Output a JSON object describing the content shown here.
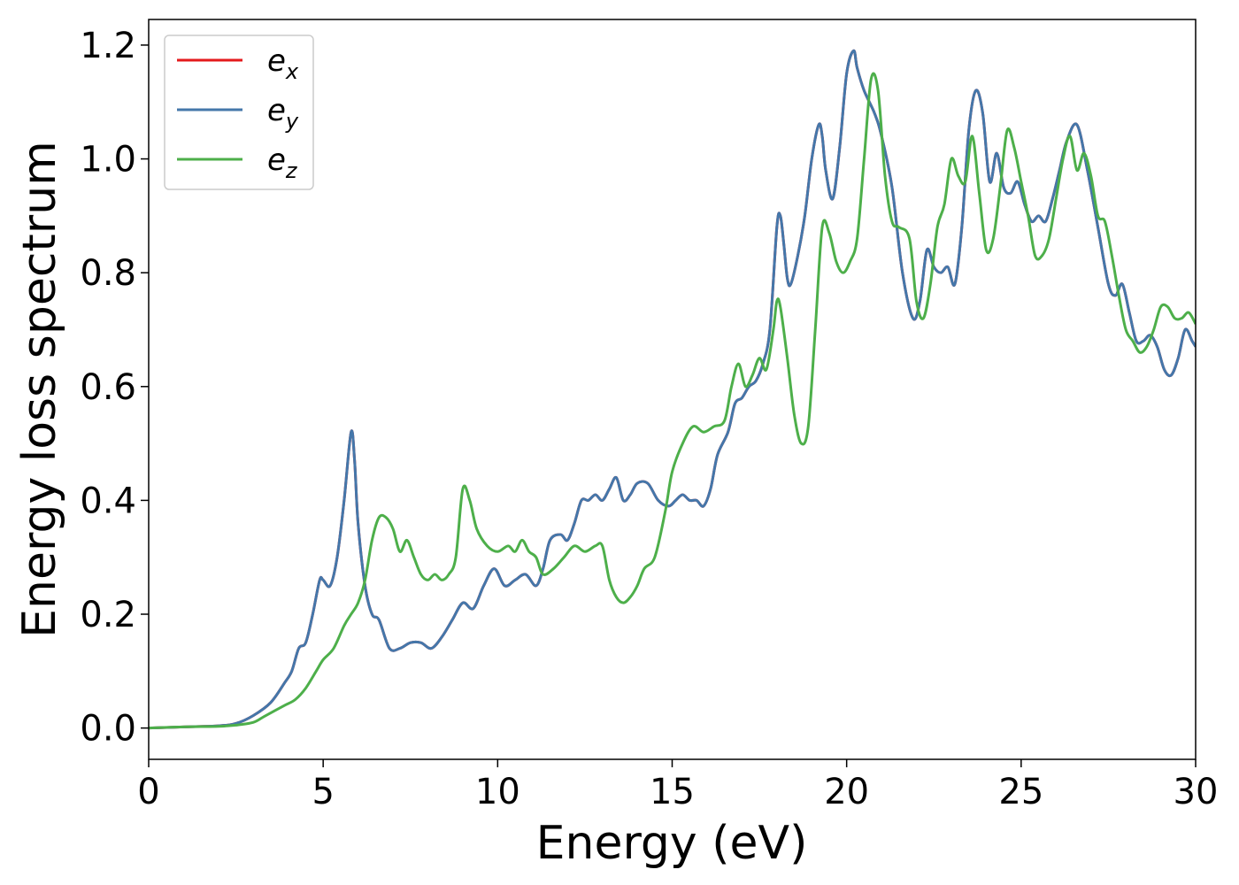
{
  "chart_data": {
    "type": "line",
    "title": "",
    "xlabel": "Energy (eV)",
    "ylabel": "Energy loss spectrum",
    "xlim": [
      0,
      30
    ],
    "ylim": [
      -0.055,
      1.245
    ],
    "xticks": [
      0,
      5,
      10,
      15,
      20,
      25,
      30
    ],
    "yticks": [
      0.0,
      0.2,
      0.4,
      0.6,
      0.8,
      1.0,
      1.2
    ],
    "xtick_labels": [
      "0",
      "5",
      "10",
      "15",
      "20",
      "25",
      "30"
    ],
    "ytick_labels": [
      "0.0",
      "0.2",
      "0.4",
      "0.6",
      "0.8",
      "1.0",
      "1.2"
    ],
    "grid": false,
    "legend": "upper-left",
    "series": [
      {
        "name": "e_x",
        "legend_base": "e",
        "legend_sub": "x",
        "color": "#e41a1c",
        "x": [
          0,
          1,
          2,
          2.5,
          3,
          3.5,
          3.9,
          4.1,
          4.3,
          4.5,
          4.7,
          4.9,
          5.0,
          5.2,
          5.4,
          5.6,
          5.8,
          5.9,
          6.0,
          6.2,
          6.4,
          6.6,
          6.9,
          7.2,
          7.5,
          7.8,
          8.1,
          8.4,
          8.7,
          9.0,
          9.3,
          9.6,
          9.9,
          10.2,
          10.5,
          10.8,
          11.1,
          11.3,
          11.5,
          11.8,
          12.0,
          12.2,
          12.4,
          12.6,
          12.8,
          13.0,
          13.2,
          13.4,
          13.6,
          13.8,
          14.0,
          14.3,
          14.6,
          14.9,
          15.1,
          15.3,
          15.5,
          15.7,
          15.9,
          16.1,
          16.3,
          16.6,
          16.8,
          17.0,
          17.2,
          17.4,
          17.6,
          17.8,
          18.0,
          18.1,
          18.2,
          18.3,
          18.4,
          18.6,
          18.8,
          19.0,
          19.2,
          19.3,
          19.4,
          19.6,
          19.8,
          20.0,
          20.2,
          20.3,
          20.5,
          20.8,
          21.0,
          21.3,
          21.6,
          21.9,
          22.1,
          22.3,
          22.5,
          22.7,
          22.9,
          23.1,
          23.3,
          23.5,
          23.7,
          23.9,
          24.1,
          24.3,
          24.5,
          24.7,
          24.9,
          25.1,
          25.3,
          25.5,
          25.7,
          25.9,
          26.1,
          26.3,
          26.6,
          26.9,
          27.2,
          27.5,
          27.7,
          27.9,
          28.1,
          28.3,
          28.5,
          28.7,
          28.9,
          29.1,
          29.3,
          29.5,
          29.7,
          29.9,
          30
        ],
        "y": [
          0.0,
          0.002,
          0.004,
          0.008,
          0.022,
          0.045,
          0.08,
          0.1,
          0.14,
          0.15,
          0.2,
          0.26,
          0.26,
          0.25,
          0.3,
          0.4,
          0.52,
          0.47,
          0.36,
          0.25,
          0.2,
          0.19,
          0.14,
          0.14,
          0.15,
          0.15,
          0.14,
          0.16,
          0.19,
          0.22,
          0.21,
          0.25,
          0.28,
          0.25,
          0.26,
          0.27,
          0.25,
          0.28,
          0.33,
          0.34,
          0.33,
          0.36,
          0.4,
          0.4,
          0.41,
          0.4,
          0.42,
          0.44,
          0.4,
          0.41,
          0.43,
          0.43,
          0.4,
          0.39,
          0.4,
          0.41,
          0.4,
          0.4,
          0.39,
          0.42,
          0.48,
          0.52,
          0.57,
          0.58,
          0.6,
          0.61,
          0.64,
          0.7,
          0.88,
          0.9,
          0.85,
          0.79,
          0.78,
          0.83,
          0.9,
          1.0,
          1.06,
          1.04,
          0.98,
          0.93,
          1.02,
          1.15,
          1.19,
          1.16,
          1.12,
          1.08,
          1.04,
          0.95,
          0.8,
          0.72,
          0.75,
          0.84,
          0.81,
          0.8,
          0.81,
          0.78,
          0.88,
          1.05,
          1.12,
          1.08,
          0.96,
          1.01,
          0.95,
          0.94,
          0.96,
          0.92,
          0.89,
          0.9,
          0.89,
          0.93,
          0.98,
          1.03,
          1.06,
          0.98,
          0.88,
          0.78,
          0.76,
          0.78,
          0.73,
          0.68,
          0.68,
          0.69,
          0.67,
          0.63,
          0.62,
          0.65,
          0.7,
          0.68,
          0.67
        ]
      },
      {
        "name": "e_y",
        "legend_base": "e",
        "legend_sub": "y",
        "color": "#4477aa",
        "x": [
          0,
          1,
          2,
          2.5,
          3,
          3.5,
          3.9,
          4.1,
          4.3,
          4.5,
          4.7,
          4.9,
          5.0,
          5.2,
          5.4,
          5.6,
          5.8,
          5.9,
          6.0,
          6.2,
          6.4,
          6.6,
          6.9,
          7.2,
          7.5,
          7.8,
          8.1,
          8.4,
          8.7,
          9.0,
          9.3,
          9.6,
          9.9,
          10.2,
          10.5,
          10.8,
          11.1,
          11.3,
          11.5,
          11.8,
          12.0,
          12.2,
          12.4,
          12.6,
          12.8,
          13.0,
          13.2,
          13.4,
          13.6,
          13.8,
          14.0,
          14.3,
          14.6,
          14.9,
          15.1,
          15.3,
          15.5,
          15.7,
          15.9,
          16.1,
          16.3,
          16.6,
          16.8,
          17.0,
          17.2,
          17.4,
          17.6,
          17.8,
          18.0,
          18.1,
          18.2,
          18.3,
          18.4,
          18.6,
          18.8,
          19.0,
          19.2,
          19.3,
          19.4,
          19.6,
          19.8,
          20.0,
          20.2,
          20.3,
          20.5,
          20.8,
          21.0,
          21.3,
          21.6,
          21.9,
          22.1,
          22.3,
          22.5,
          22.7,
          22.9,
          23.1,
          23.3,
          23.5,
          23.7,
          23.9,
          24.1,
          24.3,
          24.5,
          24.7,
          24.9,
          25.1,
          25.3,
          25.5,
          25.7,
          25.9,
          26.1,
          26.3,
          26.6,
          26.9,
          27.2,
          27.5,
          27.7,
          27.9,
          28.1,
          28.3,
          28.5,
          28.7,
          28.9,
          29.1,
          29.3,
          29.5,
          29.7,
          29.9,
          30
        ],
        "y": [
          0.0,
          0.002,
          0.004,
          0.008,
          0.022,
          0.045,
          0.08,
          0.1,
          0.14,
          0.15,
          0.2,
          0.26,
          0.26,
          0.25,
          0.3,
          0.4,
          0.52,
          0.47,
          0.36,
          0.25,
          0.2,
          0.19,
          0.14,
          0.14,
          0.15,
          0.15,
          0.14,
          0.16,
          0.19,
          0.22,
          0.21,
          0.25,
          0.28,
          0.25,
          0.26,
          0.27,
          0.25,
          0.28,
          0.33,
          0.34,
          0.33,
          0.36,
          0.4,
          0.4,
          0.41,
          0.4,
          0.42,
          0.44,
          0.4,
          0.41,
          0.43,
          0.43,
          0.4,
          0.39,
          0.4,
          0.41,
          0.4,
          0.4,
          0.39,
          0.42,
          0.48,
          0.52,
          0.57,
          0.58,
          0.6,
          0.61,
          0.64,
          0.7,
          0.88,
          0.9,
          0.85,
          0.79,
          0.78,
          0.83,
          0.9,
          1.0,
          1.06,
          1.04,
          0.98,
          0.93,
          1.02,
          1.15,
          1.19,
          1.16,
          1.12,
          1.08,
          1.04,
          0.95,
          0.8,
          0.72,
          0.75,
          0.84,
          0.81,
          0.8,
          0.81,
          0.78,
          0.88,
          1.05,
          1.12,
          1.08,
          0.96,
          1.01,
          0.95,
          0.94,
          0.96,
          0.92,
          0.89,
          0.9,
          0.89,
          0.93,
          0.98,
          1.03,
          1.06,
          0.98,
          0.88,
          0.78,
          0.76,
          0.78,
          0.73,
          0.68,
          0.68,
          0.69,
          0.67,
          0.63,
          0.62,
          0.65,
          0.7,
          0.68,
          0.67
        ]
      },
      {
        "name": "e_z",
        "legend_base": "e",
        "legend_sub": "z",
        "color": "#4daf4a",
        "x": [
          0,
          1,
          2,
          2.5,
          3,
          3.3,
          3.6,
          3.9,
          4.2,
          4.5,
          4.8,
          5.0,
          5.3,
          5.6,
          5.8,
          6.0,
          6.2,
          6.4,
          6.6,
          6.8,
          7.0,
          7.2,
          7.4,
          7.6,
          7.8,
          8.0,
          8.2,
          8.4,
          8.6,
          8.8,
          9.0,
          9.2,
          9.4,
          9.7,
          10.0,
          10.3,
          10.5,
          10.7,
          10.9,
          11.1,
          11.3,
          11.6,
          11.9,
          12.2,
          12.5,
          12.8,
          13.0,
          13.2,
          13.4,
          13.6,
          13.8,
          14.0,
          14.2,
          14.5,
          14.8,
          15.0,
          15.3,
          15.6,
          15.9,
          16.2,
          16.5,
          16.7,
          16.9,
          17.1,
          17.3,
          17.5,
          17.7,
          17.9,
          18.0,
          18.1,
          18.3,
          18.5,
          18.7,
          18.9,
          19.1,
          19.3,
          19.5,
          19.7,
          19.9,
          20.1,
          20.3,
          20.5,
          20.7,
          20.9,
          21.1,
          21.3,
          21.5,
          21.8,
          22.0,
          22.2,
          22.4,
          22.6,
          22.8,
          23.0,
          23.2,
          23.4,
          23.6,
          23.8,
          24.0,
          24.2,
          24.4,
          24.6,
          24.8,
          25.0,
          25.2,
          25.4,
          25.6,
          25.8,
          26.0,
          26.2,
          26.4,
          26.6,
          26.8,
          27.0,
          27.2,
          27.4,
          27.6,
          27.8,
          28.0,
          28.2,
          28.4,
          28.6,
          28.8,
          29.0,
          29.2,
          29.4,
          29.6,
          29.8,
          30
        ],
        "y": [
          0.0,
          0.002,
          0.003,
          0.005,
          0.01,
          0.02,
          0.03,
          0.04,
          0.05,
          0.07,
          0.1,
          0.12,
          0.14,
          0.18,
          0.2,
          0.22,
          0.26,
          0.33,
          0.37,
          0.37,
          0.35,
          0.31,
          0.33,
          0.3,
          0.27,
          0.26,
          0.27,
          0.26,
          0.27,
          0.3,
          0.42,
          0.4,
          0.35,
          0.32,
          0.31,
          0.32,
          0.31,
          0.33,
          0.31,
          0.3,
          0.27,
          0.28,
          0.3,
          0.32,
          0.31,
          0.32,
          0.32,
          0.26,
          0.23,
          0.22,
          0.23,
          0.25,
          0.28,
          0.3,
          0.38,
          0.45,
          0.5,
          0.53,
          0.52,
          0.53,
          0.54,
          0.6,
          0.64,
          0.6,
          0.62,
          0.65,
          0.63,
          0.7,
          0.75,
          0.74,
          0.65,
          0.55,
          0.5,
          0.53,
          0.7,
          0.88,
          0.87,
          0.82,
          0.8,
          0.82,
          0.86,
          1.0,
          1.14,
          1.12,
          0.97,
          0.89,
          0.88,
          0.86,
          0.75,
          0.72,
          0.78,
          0.88,
          0.92,
          1.0,
          0.97,
          0.96,
          1.04,
          0.94,
          0.84,
          0.86,
          0.95,
          1.05,
          1.02,
          0.96,
          0.9,
          0.83,
          0.83,
          0.86,
          0.93,
          1.0,
          1.04,
          0.98,
          1.01,
          0.97,
          0.9,
          0.89,
          0.83,
          0.76,
          0.7,
          0.68,
          0.66,
          0.67,
          0.7,
          0.74,
          0.74,
          0.72,
          0.72,
          0.73,
          0.71
        ]
      }
    ]
  }
}
